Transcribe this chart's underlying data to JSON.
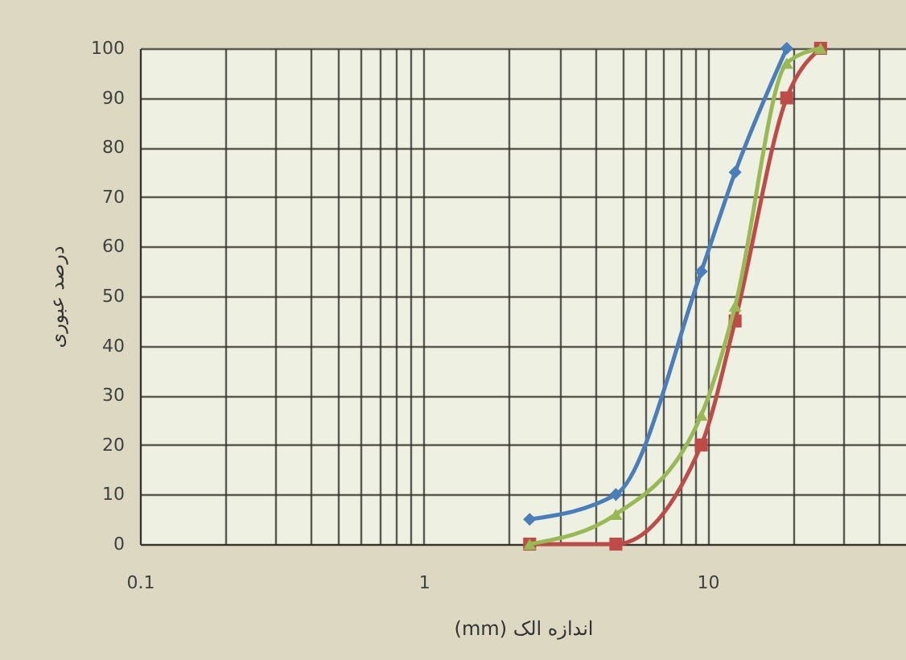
{
  "chart_data": {
    "type": "line",
    "xlabel": "اندازه الک (mm)",
    "ylabel": "درصد عبوری",
    "x": [
      2.36,
      4.75,
      9.5,
      12.5,
      19,
      25
    ],
    "series": [
      {
        "color": "#4a7ebb",
        "marker": "diamond",
        "values": [
          5,
          10,
          55,
          75,
          100,
          null
        ]
      },
      {
        "color": "#be4b48",
        "marker": "square",
        "values": [
          0,
          0,
          20,
          45,
          90,
          100
        ]
      },
      {
        "color": "#98b954",
        "marker": "triangle",
        "values": [
          0,
          6,
          26,
          48,
          97,
          100
        ]
      }
    ],
    "log": "x",
    "xlim": [
      0.1,
      50
    ],
    "xticks": [
      0.1,
      {
        "value": 0.2,
        "label": null
      },
      {
        "value": 0.3,
        "label": null
      },
      {
        "value": 0.4,
        "label": null
      },
      {
        "value": 0.5,
        "label": null
      },
      {
        "value": 0.6,
        "label": null
      },
      {
        "value": 0.7,
        "label": null
      },
      {
        "value": 0.8,
        "label": null
      },
      {
        "value": 0.9,
        "label": null
      },
      1,
      {
        "value": 2,
        "label": null
      },
      {
        "value": 3,
        "label": null
      },
      {
        "value": 4,
        "label": null
      },
      {
        "value": 5,
        "label": null
      },
      {
        "value": 6,
        "label": null
      },
      {
        "value": 7,
        "label": null
      },
      {
        "value": 8,
        "label": null
      },
      {
        "value": 9,
        "label": null
      },
      10,
      {
        "value": 20,
        "label": null
      },
      {
        "value": 30,
        "label": null
      },
      {
        "value": 40,
        "label": null
      }
    ],
    "ylim": [
      0,
      100
    ],
    "yticks": [
      0,
      10,
      20,
      30,
      40,
      50,
      60,
      70,
      80,
      90,
      100
    ],
    "grid": true
  }
}
